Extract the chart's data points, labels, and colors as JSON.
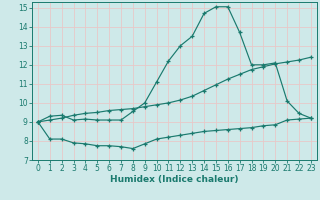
{
  "bg_color": "#cee9e9",
  "grid_color": "#e8c8c8",
  "line_color": "#1a7a6e",
  "marker": "+",
  "xlabel": "Humidex (Indice chaleur)",
  "xlim": [
    -0.5,
    23.5
  ],
  "ylim": [
    7,
    15.3
  ],
  "xticks": [
    0,
    1,
    2,
    3,
    4,
    5,
    6,
    7,
    8,
    9,
    10,
    11,
    12,
    13,
    14,
    15,
    16,
    17,
    18,
    19,
    20,
    21,
    22,
    23
  ],
  "yticks": [
    7,
    8,
    9,
    10,
    11,
    12,
    13,
    14,
    15
  ],
  "curve1_x": [
    0,
    1,
    2,
    3,
    4,
    5,
    6,
    7,
    8,
    9,
    10,
    11,
    12,
    13,
    14,
    15,
    16,
    17,
    18,
    19,
    20,
    21,
    22,
    23
  ],
  "curve1_y": [
    9.0,
    9.3,
    9.35,
    9.1,
    9.15,
    9.1,
    9.1,
    9.1,
    9.55,
    10.0,
    11.1,
    12.2,
    13.0,
    13.5,
    14.7,
    15.05,
    15.05,
    13.7,
    12.0,
    12.0,
    12.1,
    10.1,
    9.45,
    9.2
  ],
  "curve2_x": [
    0,
    1,
    2,
    3,
    4,
    5,
    6,
    7,
    8,
    9,
    10,
    11,
    12,
    13,
    14,
    15,
    16,
    17,
    18,
    19,
    20,
    21,
    22,
    23
  ],
  "curve2_y": [
    9.0,
    9.1,
    9.2,
    9.35,
    9.45,
    9.5,
    9.6,
    9.65,
    9.7,
    9.8,
    9.9,
    10.0,
    10.15,
    10.35,
    10.65,
    10.95,
    11.25,
    11.5,
    11.75,
    11.9,
    12.05,
    12.15,
    12.25,
    12.4
  ],
  "curve3_x": [
    0,
    1,
    2,
    3,
    4,
    5,
    6,
    7,
    8,
    9,
    10,
    11,
    12,
    13,
    14,
    15,
    16,
    17,
    18,
    19,
    20,
    21,
    22,
    23
  ],
  "curve3_y": [
    9.0,
    8.1,
    8.1,
    7.9,
    7.85,
    7.75,
    7.75,
    7.7,
    7.6,
    7.85,
    8.1,
    8.2,
    8.3,
    8.4,
    8.5,
    8.55,
    8.6,
    8.65,
    8.7,
    8.8,
    8.85,
    9.1,
    9.15,
    9.2
  ]
}
